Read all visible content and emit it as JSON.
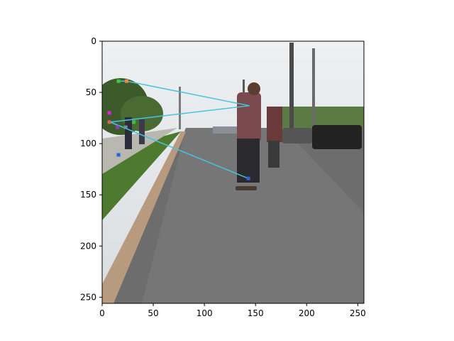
{
  "chart_data": {
    "type": "scatter",
    "title": "",
    "xlabel": "",
    "ylabel": "",
    "xlim": [
      0,
      256
    ],
    "ylim": [
      256,
      0
    ],
    "y_inverted": true,
    "grid": false,
    "legend": "none",
    "x_ticks": [
      0,
      50,
      100,
      150,
      200,
      250
    ],
    "y_ticks": [
      0,
      50,
      100,
      150,
      200,
      250
    ],
    "background_image": "street-photo-skateboarder",
    "line_color": "#45c4dc",
    "path": {
      "x": [
        16,
        24,
        144,
        8,
        143
      ],
      "y": [
        39,
        39,
        63,
        79,
        134
      ]
    },
    "keypoints": [
      {
        "x": 16,
        "y": 39,
        "color": "#3fc83f"
      },
      {
        "x": 24,
        "y": 39,
        "color": "#e8863a"
      },
      {
        "x": 7,
        "y": 70,
        "color": "#e020e0"
      },
      {
        "x": 7,
        "y": 79,
        "color": "#d86060"
      },
      {
        "x": 15,
        "y": 84,
        "color": "#8040c0"
      },
      {
        "x": 23,
        "y": 84,
        "color": "#60a0a0"
      },
      {
        "x": 31,
        "y": 79,
        "color": "#40c040"
      },
      {
        "x": 16,
        "y": 111,
        "color": "#3060e0"
      },
      {
        "x": 143,
        "y": 134,
        "color": "#3060e0"
      }
    ]
  }
}
